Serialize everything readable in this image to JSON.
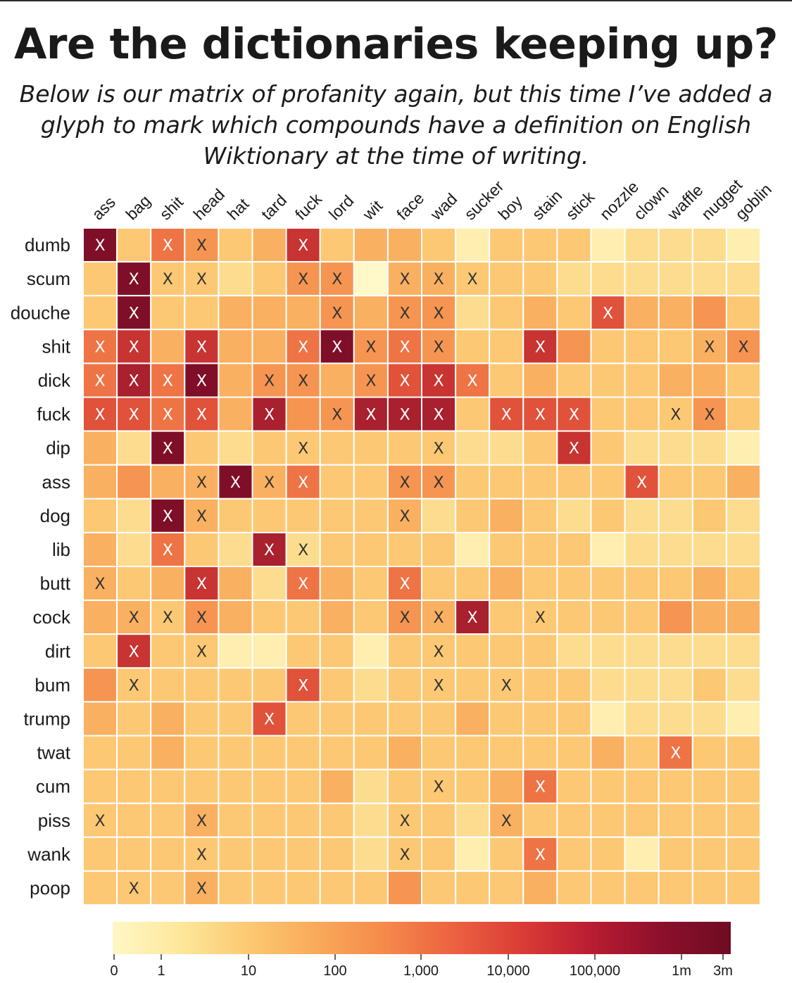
{
  "title": "Are the dictionaries keeping up?",
  "subtitle": "Below is our matrix of profanity again, but this time I’ve added a glyph to mark which compounds have a definition on English Wiktionary at the time of writing.",
  "chart_data": {
    "type": "heatmap",
    "columns": [
      "ass",
      "bag",
      "shit",
      "head",
      "hat",
      "tard",
      "fuck",
      "lord",
      "wit",
      "face",
      "wad",
      "sucker",
      "boy",
      "stain",
      "stick",
      "nozzle",
      "clown",
      "waffle",
      "nugget",
      "goblin"
    ],
    "rows": [
      "dumb",
      "scum",
      "douche",
      "shit",
      "dick",
      "fuck",
      "dip",
      "ass",
      "dog",
      "lib",
      "butt",
      "cock",
      "dirt",
      "bum",
      "trump",
      "twat",
      "cum",
      "piss",
      "wank",
      "poop"
    ],
    "value_note": "cell values are color-scale levels (0 = lightest, 10 = darkest)",
    "values": [
      [
        10,
        3,
        6,
        5,
        3,
        4,
        8,
        3,
        4,
        4,
        3,
        1,
        3,
        3,
        3,
        1,
        2,
        2,
        2,
        1
      ],
      [
        3,
        10,
        3,
        3,
        2,
        3,
        5,
        5,
        0,
        4,
        4,
        3,
        3,
        3,
        2,
        2,
        2,
        2,
        2,
        2
      ],
      [
        3,
        10,
        3,
        3,
        4,
        4,
        4,
        5,
        4,
        5,
        5,
        2,
        3,
        4,
        3,
        7,
        4,
        4,
        5,
        3
      ],
      [
        6,
        8,
        4,
        8,
        4,
        4,
        6,
        10,
        5,
        6,
        5,
        3,
        3,
        8,
        5,
        3,
        3,
        3,
        4,
        5
      ],
      [
        6,
        9,
        6,
        10,
        4,
        5,
        5,
        4,
        5,
        7,
        8,
        6,
        3,
        4,
        3,
        3,
        3,
        4,
        4,
        3
      ],
      [
        7,
        7,
        6,
        7,
        4,
        9,
        5,
        5,
        9,
        9,
        9,
        3,
        7,
        7,
        7,
        3,
        3,
        3,
        5,
        3
      ],
      [
        4,
        2,
        10,
        3,
        2,
        3,
        3,
        3,
        3,
        3,
        3,
        2,
        2,
        3,
        8,
        3,
        2,
        2,
        2,
        1
      ],
      [
        4,
        5,
        4,
        4,
        10,
        4,
        6,
        3,
        3,
        5,
        5,
        3,
        3,
        3,
        3,
        3,
        7,
        3,
        3,
        4
      ],
      [
        3,
        2,
        10,
        4,
        3,
        3,
        3,
        3,
        3,
        4,
        2,
        3,
        4,
        3,
        2,
        3,
        2,
        2,
        3,
        2
      ],
      [
        4,
        2,
        6,
        3,
        2,
        9,
        2,
        3,
        3,
        3,
        3,
        1,
        3,
        3,
        3,
        1,
        2,
        2,
        2,
        2
      ],
      [
        4,
        3,
        4,
        8,
        4,
        2,
        6,
        4,
        3,
        6,
        3,
        3,
        4,
        3,
        3,
        3,
        3,
        3,
        4,
        3
      ],
      [
        4,
        4,
        3,
        5,
        4,
        3,
        3,
        4,
        3,
        5,
        4,
        9,
        3,
        3,
        3,
        3,
        3,
        5,
        4,
        4
      ],
      [
        3,
        8,
        3,
        3,
        1,
        1,
        3,
        3,
        1,
        3,
        3,
        3,
        3,
        3,
        2,
        2,
        2,
        2,
        2,
        2
      ],
      [
        5,
        3,
        3,
        3,
        3,
        3,
        7,
        3,
        2,
        3,
        3,
        3,
        3,
        3,
        3,
        2,
        2,
        2,
        3,
        2
      ],
      [
        4,
        3,
        4,
        3,
        3,
        7,
        3,
        3,
        3,
        3,
        3,
        4,
        3,
        3,
        3,
        1,
        2,
        2,
        2,
        1
      ],
      [
        3,
        3,
        4,
        3,
        3,
        3,
        3,
        3,
        3,
        4,
        3,
        3,
        3,
        3,
        3,
        4,
        3,
        6,
        3,
        3
      ],
      [
        3,
        3,
        3,
        3,
        3,
        3,
        3,
        4,
        2,
        3,
        3,
        3,
        4,
        6,
        3,
        3,
        3,
        3,
        3,
        3
      ],
      [
        3,
        3,
        3,
        4,
        3,
        3,
        3,
        3,
        2,
        3,
        3,
        2,
        4,
        3,
        3,
        3,
        3,
        3,
        3,
        3
      ],
      [
        3,
        3,
        3,
        3,
        3,
        3,
        3,
        3,
        2,
        3,
        3,
        1,
        3,
        6,
        3,
        3,
        1,
        3,
        3,
        3
      ],
      [
        3,
        3,
        3,
        4,
        3,
        3,
        3,
        3,
        3,
        5,
        3,
        3,
        3,
        4,
        3,
        3,
        3,
        3,
        3,
        3
      ]
    ],
    "marked": [
      [
        1,
        0,
        1,
        1,
        0,
        0,
        1,
        0,
        0,
        0,
        0,
        0,
        0,
        0,
        0,
        0,
        0,
        0,
        0,
        0
      ],
      [
        0,
        1,
        1,
        1,
        0,
        0,
        1,
        1,
        0,
        1,
        1,
        1,
        0,
        0,
        0,
        0,
        0,
        0,
        0,
        0
      ],
      [
        0,
        1,
        0,
        0,
        0,
        0,
        0,
        1,
        0,
        1,
        1,
        0,
        0,
        0,
        0,
        1,
        0,
        0,
        0,
        0
      ],
      [
        1,
        1,
        0,
        1,
        0,
        0,
        1,
        1,
        1,
        1,
        1,
        0,
        0,
        1,
        0,
        0,
        0,
        0,
        1,
        1
      ],
      [
        1,
        1,
        1,
        1,
        0,
        1,
        1,
        0,
        1,
        1,
        1,
        1,
        0,
        0,
        0,
        0,
        0,
        0,
        0,
        0
      ],
      [
        1,
        1,
        1,
        1,
        0,
        1,
        0,
        1,
        1,
        1,
        1,
        0,
        1,
        1,
        1,
        0,
        0,
        1,
        1,
        0
      ],
      [
        0,
        0,
        1,
        0,
        0,
        0,
        1,
        0,
        0,
        0,
        1,
        0,
        0,
        0,
        1,
        0,
        0,
        0,
        0,
        0
      ],
      [
        0,
        0,
        0,
        1,
        1,
        1,
        1,
        0,
        0,
        1,
        1,
        0,
        0,
        0,
        0,
        0,
        1,
        0,
        0,
        0
      ],
      [
        0,
        0,
        1,
        1,
        0,
        0,
        0,
        0,
        0,
        1,
        0,
        0,
        0,
        0,
        0,
        0,
        0,
        0,
        0,
        0
      ],
      [
        0,
        0,
        1,
        0,
        0,
        1,
        1,
        0,
        0,
        0,
        0,
        0,
        0,
        0,
        0,
        0,
        0,
        0,
        0,
        0
      ],
      [
        1,
        0,
        0,
        1,
        0,
        0,
        1,
        0,
        0,
        1,
        0,
        0,
        0,
        0,
        0,
        0,
        0,
        0,
        0,
        0
      ],
      [
        0,
        1,
        1,
        1,
        0,
        0,
        0,
        0,
        0,
        1,
        1,
        1,
        0,
        1,
        0,
        0,
        0,
        0,
        0,
        0
      ],
      [
        0,
        1,
        0,
        1,
        0,
        0,
        0,
        0,
        0,
        0,
        1,
        0,
        0,
        0,
        0,
        0,
        0,
        0,
        0,
        0
      ],
      [
        0,
        1,
        0,
        0,
        0,
        0,
        1,
        0,
        0,
        0,
        1,
        0,
        1,
        0,
        0,
        0,
        0,
        0,
        0,
        0
      ],
      [
        0,
        0,
        0,
        0,
        0,
        1,
        0,
        0,
        0,
        0,
        0,
        0,
        0,
        0,
        0,
        0,
        0,
        0,
        0,
        0
      ],
      [
        0,
        0,
        0,
        0,
        0,
        0,
        0,
        0,
        0,
        0,
        0,
        0,
        0,
        0,
        0,
        0,
        0,
        1,
        0,
        0
      ],
      [
        0,
        0,
        0,
        0,
        0,
        0,
        0,
        0,
        0,
        0,
        1,
        0,
        0,
        1,
        0,
        0,
        0,
        0,
        0,
        0
      ],
      [
        1,
        0,
        0,
        1,
        0,
        0,
        0,
        0,
        0,
        1,
        0,
        0,
        1,
        0,
        0,
        0,
        0,
        0,
        0,
        0
      ],
      [
        0,
        0,
        0,
        1,
        0,
        0,
        0,
        0,
        0,
        1,
        0,
        0,
        0,
        1,
        0,
        0,
        0,
        0,
        0,
        0
      ],
      [
        0,
        1,
        0,
        1,
        0,
        0,
        0,
        0,
        0,
        0,
        0,
        0,
        0,
        0,
        0,
        0,
        0,
        0,
        0,
        0
      ]
    ],
    "mark_glyph": "X",
    "colorbar": {
      "ticks": [
        "0",
        "1",
        "10",
        "100",
        "1,000",
        "10,000",
        "100,000",
        "1m",
        "3m"
      ],
      "colors": [
        "#fff7c7",
        "#fde79a",
        "#fcc871",
        "#f9a95a",
        "#f5884a",
        "#ec6040",
        "#d93a35",
        "#b81c32",
        "#8c0f2b",
        "#6e0c24"
      ]
    },
    "cell_colors": [
      "#fff8c9",
      "#feeeb0",
      "#fcdc8f",
      "#fcc874",
      "#f9b060",
      "#f59551",
      "#ee7446",
      "#e0523a",
      "#c83432",
      "#a9202e",
      "#7f0f28"
    ]
  }
}
